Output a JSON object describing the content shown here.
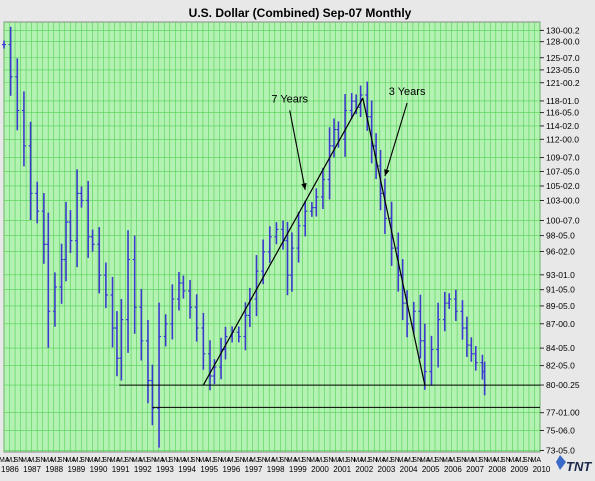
{
  "chart_data": {
    "type": "bar",
    "subtype": "ohlc",
    "title": "U.S. Dollar (Combined) Sep-07  Monthly",
    "ylim": [
      73.0,
      131.5
    ],
    "y_scale": "log",
    "y_tick_labels": [
      "130-00.2",
      "128-00.0",
      "125-07.0",
      "123-05.0",
      "121-00.2",
      "118-01.0",
      "116-05.0",
      "114-02.0",
      "112-00.0",
      "109-07.0",
      "107-05.0",
      "105-02.0",
      "103-00.0",
      "100-07.0",
      "98-05.0",
      "96-02.0",
      "93-01.0",
      "91-05.0",
      "89-05.0",
      "87-00.0",
      "84-05.0",
      "82-05.0",
      "80-00.25",
      "77-01.00",
      "75-06.0",
      "73-05.0"
    ],
    "x_range": [
      1986.0,
      2010.2
    ],
    "x_year_labels": [
      "1986",
      "1987",
      "1988",
      "1989",
      "1990",
      "1991",
      "1992",
      "1993",
      "1994",
      "1995",
      "1996",
      "1997",
      "1998",
      "1999",
      "2000",
      "2001",
      "2002",
      "2003",
      "2004",
      "2005",
      "2006",
      "2007",
      "2008",
      "2009",
      "2010"
    ],
    "x_month_labels": [
      "MA",
      "MJ",
      "SN"
    ],
    "grid": true,
    "series": [
      {
        "values": [
          [
            1986.0,
            127.5
          ],
          [
            1986.3,
            122.0
          ],
          [
            1986.6,
            116.5
          ],
          [
            1986.9,
            111.0
          ],
          [
            1987.2,
            104.0
          ],
          [
            1987.5,
            101.5
          ],
          [
            1987.8,
            97.0
          ],
          [
            1988.0,
            88.5
          ],
          [
            1988.3,
            91.5
          ],
          [
            1988.6,
            95.0
          ],
          [
            1988.8,
            100.0
          ],
          [
            1989.0,
            97.5
          ],
          [
            1989.3,
            104.0
          ],
          [
            1989.5,
            103.0
          ],
          [
            1989.8,
            98.0
          ],
          [
            1990.0,
            97.0
          ],
          [
            1990.3,
            93.0
          ],
          [
            1990.6,
            90.5
          ],
          [
            1990.9,
            86.5
          ],
          [
            1991.1,
            83.0
          ],
          [
            1991.3,
            87.5
          ],
          [
            1991.6,
            95.0
          ],
          [
            1991.9,
            89.0
          ],
          [
            1992.2,
            85.0
          ],
          [
            1992.5,
            80.5
          ],
          [
            1992.7,
            77.5
          ],
          [
            1993.0,
            85.5
          ],
          [
            1993.3,
            87.0
          ],
          [
            1993.6,
            90.0
          ],
          [
            1993.9,
            92.0
          ],
          [
            1994.1,
            91.0
          ],
          [
            1994.4,
            89.0
          ],
          [
            1994.7,
            86.5
          ],
          [
            1995.0,
            83.5
          ],
          [
            1995.3,
            81.0
          ],
          [
            1995.5,
            82.0
          ],
          [
            1995.8,
            84.0
          ],
          [
            1996.0,
            85.5
          ],
          [
            1996.3,
            86.0
          ],
          [
            1996.6,
            85.5
          ],
          [
            1996.9,
            88.0
          ],
          [
            1997.1,
            90.0
          ],
          [
            1997.4,
            93.5
          ],
          [
            1997.7,
            96.0
          ],
          [
            1998.0,
            98.0
          ],
          [
            1998.3,
            99.0
          ],
          [
            1998.6,
            97.5
          ],
          [
            1998.8,
            93.0
          ],
          [
            1999.0,
            96.5
          ],
          [
            1999.3,
            99.5
          ],
          [
            1999.6,
            101.5
          ],
          [
            1999.9,
            102.0
          ],
          [
            2000.1,
            103.5
          ],
          [
            2000.4,
            106.0
          ],
          [
            2000.7,
            111.0
          ],
          [
            2000.9,
            113.5
          ],
          [
            2001.1,
            112.0
          ],
          [
            2001.4,
            116.5
          ],
          [
            2001.7,
            118.0
          ],
          [
            2001.9,
            117.0
          ],
          [
            2002.1,
            119.0
          ],
          [
            2002.4,
            115.5
          ],
          [
            2002.6,
            111.0
          ],
          [
            2002.8,
            108.0
          ],
          [
            2003.0,
            104.0
          ],
          [
            2003.2,
            100.5
          ],
          [
            2003.5,
            96.5
          ],
          [
            2003.8,
            93.0
          ],
          [
            2004.0,
            89.5
          ],
          [
            2004.2,
            87.0
          ],
          [
            2004.5,
            88.5
          ],
          [
            2004.8,
            85.0
          ],
          [
            2005.0,
            81.5
          ],
          [
            2005.3,
            84.0
          ],
          [
            2005.6,
            87.5
          ],
          [
            2005.9,
            89.5
          ],
          [
            2006.1,
            90.0
          ],
          [
            2006.4,
            88.5
          ],
          [
            2006.7,
            86.5
          ],
          [
            2006.9,
            84.5
          ],
          [
            2007.1,
            83.5
          ],
          [
            2007.3,
            82.5
          ],
          [
            2007.6,
            81.5
          ],
          [
            2007.7,
            80.0
          ]
        ]
      }
    ],
    "trendlines": [
      {
        "label": "7 Years",
        "from": [
          1995.0,
          80.0
        ],
        "to": [
          2002.2,
          118.5
        ]
      },
      {
        "label": "3 Years",
        "from": [
          2002.2,
          118.5
        ],
        "to": [
          2005.0,
          80.0
        ]
      }
    ],
    "horizontal_lines": [
      80.0,
      77.6
    ],
    "annotations": [
      {
        "text": "7 Years",
        "at": [
          1998.9,
          117.8
        ],
        "arrow_to": [
          1999.6,
          104.5
        ]
      },
      {
        "text": "3 Years",
        "at": [
          2004.2,
          119.0
        ],
        "arrow_to": [
          2003.2,
          106.5
        ]
      }
    ],
    "colors": {
      "background": "#b3f2b3",
      "grid": "#54d054",
      "series": "#3a3acc",
      "frame": "#e8e8e8",
      "lines": "#000000",
      "logo": "#1d2a4d"
    },
    "logo_text": "TNT"
  }
}
